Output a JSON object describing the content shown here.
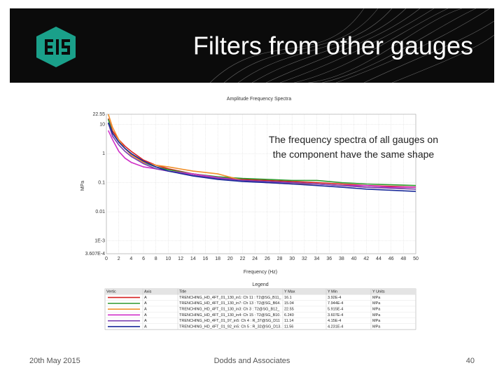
{
  "header": {
    "title": "Filters from other gauges"
  },
  "chart_data": {
    "type": "line",
    "title": "Amplitude Frequency Spectra",
    "annotation": "The frequency spectra of all gauges on the component have the same shape",
    "x_label": "Frequency (Hz)",
    "y_label": "MPa",
    "log_y": true,
    "grid": true,
    "xlim": [
      0,
      50
    ],
    "xticks": [
      0,
      2,
      4,
      6,
      8,
      10,
      12,
      14,
      16,
      18,
      20,
      22,
      24,
      26,
      28,
      30,
      32,
      34,
      36,
      38,
      40,
      42,
      44,
      46,
      48,
      50
    ],
    "ylim": [
      0.0003607,
      22.55
    ],
    "yticks": [
      22.55,
      10,
      1,
      0.1,
      0.01,
      {
        "value": 0.001,
        "label": "1E-3"
      },
      {
        "value": 0.0003607,
        "label": "3.607E-4"
      }
    ],
    "x": [
      0.3,
      1,
      2,
      3,
      4,
      6,
      8,
      10,
      14,
      18,
      22,
      26,
      30,
      34,
      38,
      42,
      46,
      50
    ],
    "series": [
      {
        "name": "TRENCHING_HD_4FT_01_130_in1: Ch 11 : T2@SG_B11_B...",
        "color": "#d62020",
        "values": [
          16.1,
          6,
          3,
          1.8,
          1.2,
          0.6,
          0.4,
          0.3,
          0.2,
          0.15,
          0.13,
          0.12,
          0.11,
          0.1,
          0.09,
          0.08,
          0.075,
          0.07
        ]
      },
      {
        "name": "TRENCHING_HD_4FT_01_130_in7: Ch 13 : T2@SG_B64...",
        "color": "#2e9a2e",
        "values": [
          15.04,
          5,
          2.5,
          1.5,
          1,
          0.5,
          0.35,
          0.28,
          0.2,
          0.16,
          0.14,
          0.13,
          0.12,
          0.12,
          0.1,
          0.09,
          0.085,
          0.08
        ]
      },
      {
        "name": "TRENCHING_HD_4FT_01_130_in3: Ch 3 : T2@SG_B12_R...",
        "color": "#f0902a",
        "values": [
          22.55,
          8,
          3,
          1.5,
          0.9,
          0.5,
          0.4,
          0.35,
          0.25,
          0.2,
          0.12,
          0.1,
          0.09,
          0.09,
          0.08,
          0.07,
          0.065,
          0.06
        ]
      },
      {
        "name": "TRENCHING_HD_4FT_01_130_in4: Ch 15 : T2@SG_B10...",
        "color": "#d030c8",
        "values": [
          6.24,
          3,
          1.2,
          0.7,
          0.5,
          0.35,
          0.3,
          0.25,
          0.2,
          0.15,
          0.12,
          0.1,
          0.1,
          0.09,
          0.08,
          0.08,
          0.07,
          0.07
        ]
      },
      {
        "name": "TRENCHING_HD_4FT_01_97_in5: Ch 4 : R_37@SG_D11",
        "color": "#7a3fb0",
        "values": [
          11.14,
          4,
          2,
          1.2,
          0.8,
          0.45,
          0.3,
          0.25,
          0.18,
          0.14,
          0.12,
          0.11,
          0.1,
          0.09,
          0.08,
          0.07,
          0.065,
          0.06
        ]
      },
      {
        "name": "TRENCHING_HD_4FT_01_92_in5: Ch 5 : R_32@SG_D13...",
        "color": "#1a2a9a",
        "values": [
          11.56,
          5,
          2.5,
          1.5,
          1,
          0.55,
          0.35,
          0.25,
          0.17,
          0.13,
          0.11,
          0.1,
          0.09,
          0.08,
          0.07,
          0.06,
          0.055,
          0.05
        ]
      }
    ],
    "legend": {
      "title": "Legend",
      "headers": [
        "Vertic",
        "Axis",
        "Title",
        "Y Max",
        "Y Min",
        "Y Units"
      ],
      "rows": [
        [
          "A",
          "16.1",
          "3.92E-4",
          "MPa"
        ],
        [
          "A",
          "15.04",
          "7.944E-4",
          "MPa"
        ],
        [
          "A",
          "22.55",
          "5.915E-4",
          "MPa"
        ],
        [
          "A",
          "6.240",
          "3.607E-4",
          "MPa"
        ],
        [
          "A",
          "11.14",
          "4.15E-4",
          "MPa"
        ],
        [
          "A",
          "11.56",
          "4.231E-4",
          "MPa"
        ]
      ]
    }
  },
  "footer": {
    "date": "20th May 2015",
    "company": "Dodds and Associates",
    "page": "40"
  }
}
